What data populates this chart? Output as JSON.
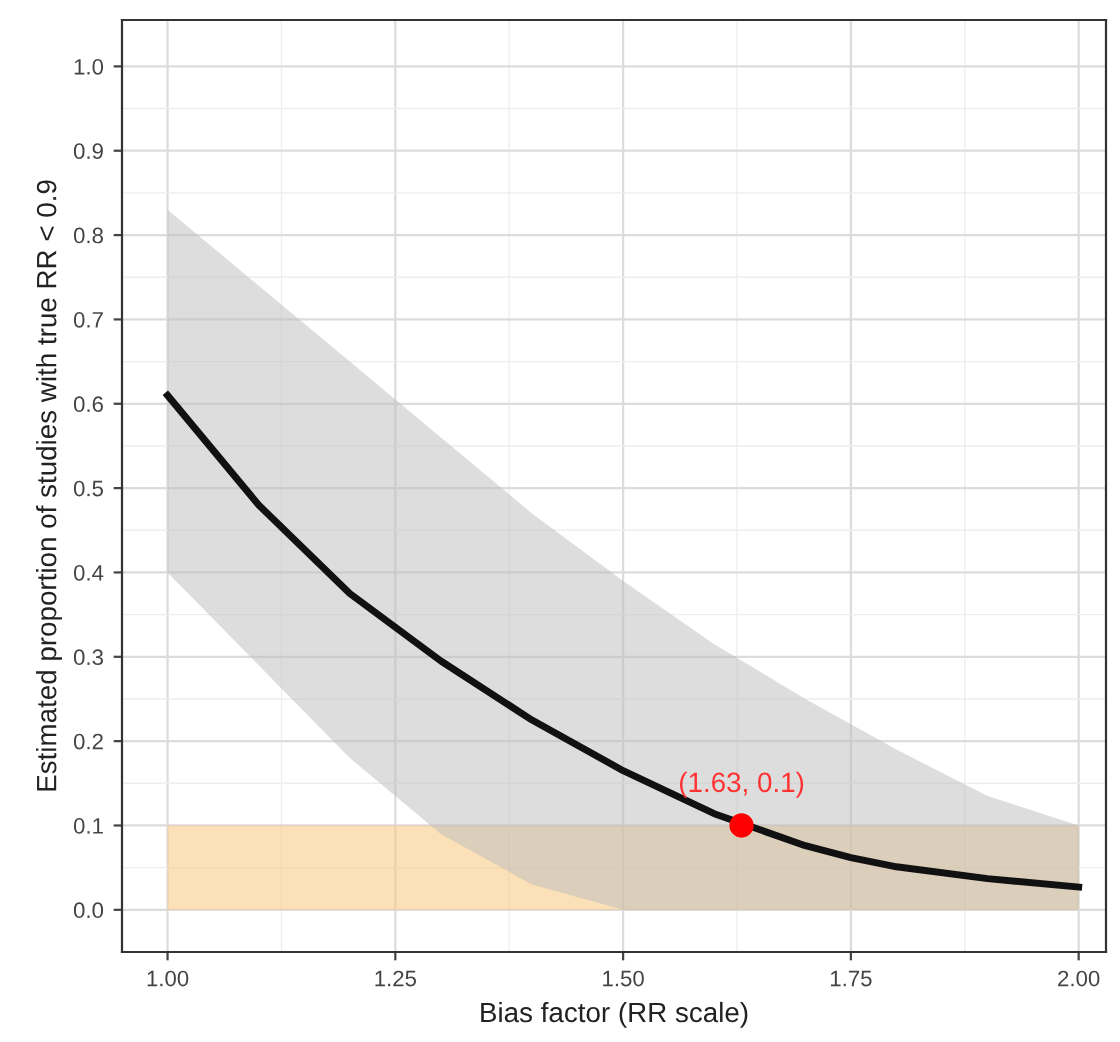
{
  "chart_data": {
    "type": "line",
    "xlabel": "Bias factor (RR scale)",
    "ylabel": "Estimated proportion of studies with true RR < 0.9",
    "series": [
      {
        "marker": "none",
        "color": "#111111",
        "x": [
          1.0,
          1.1,
          1.2,
          1.25,
          1.3,
          1.4,
          1.5,
          1.6,
          1.7,
          1.75,
          1.8,
          1.9,
          2.0
        ],
        "values": [
          0.61,
          0.48,
          0.375,
          0.335,
          0.295,
          0.225,
          0.165,
          0.114,
          0.076,
          0.062,
          0.051,
          0.037,
          0.027
        ],
        "lower": [
          0.4,
          0.29,
          0.18,
          0.135,
          0.09,
          0.03,
          0.0,
          0.0,
          0.0,
          0.0,
          0.0,
          0.0,
          0.0
        ],
        "upper": [
          0.83,
          0.74,
          0.65,
          0.605,
          0.56,
          0.47,
          0.39,
          0.315,
          0.25,
          0.22,
          0.19,
          0.135,
          0.1
        ]
      },
      {
        "type": "scatter",
        "marker": "circle",
        "color": "#ff0000",
        "x": [
          1.63
        ],
        "values": [
          0.1
        ]
      }
    ],
    "annotations": [
      {
        "text": "(1.63, 0.1)",
        "x": 1.63,
        "y": 0.1
      }
    ],
    "bands": [
      {
        "axis": "y",
        "from": 0,
        "to": 0.1,
        "color": "#f7c77e"
      }
    ],
    "xlim": [
      0.95,
      2.03
    ],
    "ylim": [
      -0.05,
      1.055
    ],
    "xticks": [
      {
        "value": 1.0,
        "label": "1.00"
      },
      {
        "value": 1.25,
        "label": "1.25"
      },
      {
        "value": 1.5,
        "label": "1.50"
      },
      {
        "value": 1.75,
        "label": "1.75"
      },
      {
        "value": 2.0,
        "label": "2.00"
      }
    ],
    "yticks": [
      {
        "value": 0,
        "label": "0.0"
      },
      0.1,
      0.2,
      0.3,
      0.4,
      0.5,
      0.6,
      0.7,
      0.8,
      0.9,
      {
        "value": 1,
        "label": "1.0"
      }
    ],
    "grid": true,
    "line_style": "solid"
  }
}
